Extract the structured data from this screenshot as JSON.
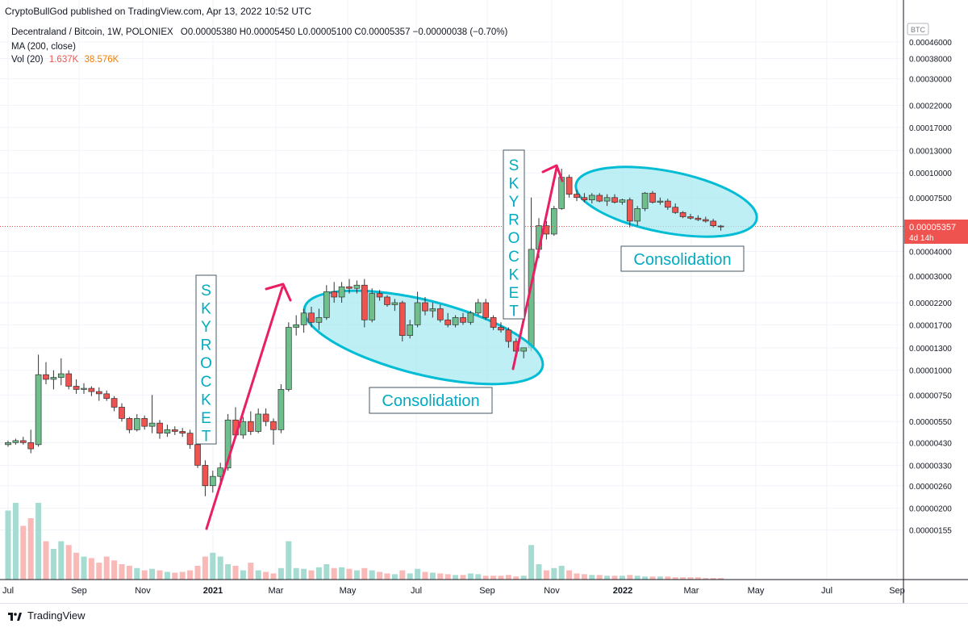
{
  "header": {
    "published": "CryptoBullGod published on TradingView.com, Apr 13, 2022 10:52 UTC"
  },
  "legend": {
    "symbol": "Decentraland / Bitcoin, 1W, POLONIEX",
    "ohlc": "O0.00005380 H0.00005450 L0.00005100 C0.00005357 −0.00000038 (−0.70%)",
    "ma": "MA (200, close)",
    "vol_label": "Vol (20)",
    "vol_value1": "1.637K",
    "vol_value2": "38.576K"
  },
  "colors": {
    "up": "#26a69a",
    "down": "#ef5350",
    "annotation_arrow": "#e91e63",
    "ellipse_stroke": "#00bcd4",
    "ellipse_fill": "#a7e9f0",
    "price_tag": "#ef5350",
    "label_text": "#00acc1"
  },
  "price_axis": {
    "currency_badge": "BTC",
    "ticks": [
      "0.00046000",
      "0.00038000",
      "0.00030000",
      "0.00022000",
      "0.00017000",
      "0.00013000",
      "0.00010000",
      "0.00007500",
      "0.00004000",
      "0.00003000",
      "0.00002200",
      "0.00001700",
      "0.00001300",
      "0.00001000",
      "0.00000750",
      "0.00000550",
      "0.00000430",
      "0.00000330",
      "0.00000260",
      "0.00000200",
      "0.00000155"
    ],
    "current_price": "0.00005357",
    "current_countdown": "4d 14h"
  },
  "time_axis": {
    "labels": [
      "Jul",
      "Sep",
      "Nov",
      "2021",
      "Mar",
      "May",
      "Jul",
      "Sep",
      "Nov",
      "2022",
      "Mar",
      "May",
      "Jul",
      "Sep"
    ]
  },
  "annotations": {
    "skyrocket_1": "SKYROCKET",
    "skyrocket_2": "SKYROCKET",
    "consolidation_1": "Consolidation",
    "consolidation_2": "Consolidation"
  },
  "footer": {
    "brand": "TradingView"
  },
  "chart_data": {
    "type": "candlestick",
    "pair": "MANA/BTC",
    "interval": "1W",
    "scale": "log",
    "candles": [
      [
        4.2e-06,
        4.4e-06,
        4.1e-06,
        4.3e-06
      ],
      [
        4.3e-06,
        4.5e-06,
        4.2e-06,
        4.4e-06
      ],
      [
        4.4e-06,
        4.6e-06,
        4.2e-06,
        4.3e-06
      ],
      [
        4.3e-06,
        5e-06,
        3.8e-06,
        4e-06
      ],
      [
        4.2e-06,
        1.2e-05,
        4.1e-06,
        9.5e-06
      ],
      [
        9.5e-06,
        1.1e-05,
        8.5e-06,
        9e-06
      ],
      [
        9e-06,
        1e-05,
        8e-06,
        9.2e-06
      ],
      [
        9.2e-06,
        1.15e-05,
        8.4e-06,
        9.6e-06
      ],
      [
        9.6e-06,
        1e-05,
        8e-06,
        8.3e-06
      ],
      [
        8.3e-06,
        9e-06,
        7.6e-06,
        8e-06
      ],
      [
        8e-06,
        8.6e-06,
        7.6e-06,
        8.1e-06
      ],
      [
        8.1e-06,
        8.3e-06,
        7.4e-06,
        7.8e-06
      ],
      [
        7.8e-06,
        8.2e-06,
        7e-06,
        7.6e-06
      ],
      [
        7.6e-06,
        7.9e-06,
        7e-06,
        7.2e-06
      ],
      [
        7.2e-06,
        7.4e-06,
        6.2e-06,
        6.5e-06
      ],
      [
        6.5e-06,
        6.8e-06,
        5.5e-06,
        5.7e-06
      ],
      [
        5.7e-06,
        5.8e-06,
        4.8e-06,
        5e-06
      ],
      [
        5e-06,
        6e-06,
        4.9e-06,
        5.7e-06
      ],
      [
        5.7e-06,
        5.9e-06,
        5e-06,
        5.2e-06
      ],
      [
        5.2e-06,
        7.5e-06,
        4.8e-06,
        5.4e-06
      ],
      [
        5.4e-06,
        5.6e-06,
        4.5e-06,
        4.8e-06
      ],
      [
        4.8e-06,
        5.3e-06,
        4.6e-06,
        5e-06
      ],
      [
        5e-06,
        5.2e-06,
        4.7e-06,
        4.9e-06
      ],
      [
        4.9e-06,
        5.1e-06,
        4.6e-06,
        4.8e-06
      ],
      [
        4.8e-06,
        5e-06,
        4e-06,
        4.2e-06
      ],
      [
        4.2e-06,
        4.3e-06,
        3.2e-06,
        3.3e-06
      ],
      [
        3.3e-06,
        3.5e-06,
        2.3e-06,
        2.6e-06
      ],
      [
        2.6e-06,
        3.1e-06,
        2.4e-06,
        2.9e-06
      ],
      [
        2.9e-06,
        3.4e-06,
        2.7e-06,
        3.2e-06
      ],
      [
        3.2e-06,
        6e-06,
        3.1e-06,
        5.6e-06
      ],
      [
        5.6e-06,
        6.5e-06,
        4.5e-06,
        4.7e-06
      ],
      [
        4.7e-06,
        5.8e-06,
        4.5e-06,
        5.5e-06
      ],
      [
        5.5e-06,
        6.2e-06,
        4.7e-06,
        4.9e-06
      ],
      [
        4.9e-06,
        6.4e-06,
        4.8e-06,
        6e-06
      ],
      [
        6e-06,
        6.4e-06,
        5.2e-06,
        5.5e-06
      ],
      [
        5.5e-06,
        5.7e-06,
        4.2e-06,
        5e-06
      ],
      [
        5e-06,
        8.5e-06,
        4.8e-06,
        8e-06
      ],
      [
        8e-06,
        1.75e-05,
        7.8e-06,
        1.65e-05
      ],
      [
        1.65e-05,
        1.9e-05,
        1.5e-05,
        1.7e-05
      ],
      [
        1.7e-05,
        2.05e-05,
        1.55e-05,
        1.95e-05
      ],
      [
        1.95e-05,
        2.1e-05,
        1.65e-05,
        1.75e-05
      ],
      [
        1.75e-05,
        2.05e-05,
        1.6e-05,
        1.85e-05
      ],
      [
        1.85e-05,
        2.7e-05,
        1.8e-05,
        2.5e-05
      ],
      [
        2.5e-05,
        2.8e-05,
        2.2e-05,
        2.35e-05
      ],
      [
        2.35e-05,
        2.8e-05,
        2.2e-05,
        2.65e-05
      ],
      [
        2.65e-05,
        2.9e-05,
        2.45e-05,
        2.6e-05
      ],
      [
        2.6e-05,
        2.85e-05,
        2.45e-05,
        2.7e-05
      ],
      [
        2.7e-05,
        2.9e-05,
        1.65e-05,
        1.8e-05
      ],
      [
        1.8e-05,
        2.6e-05,
        1.75e-05,
        2.45e-05
      ],
      [
        2.45e-05,
        2.55e-05,
        2.25e-05,
        2.35e-05
      ],
      [
        2.35e-05,
        2.4e-05,
        2.1e-05,
        2.15e-05
      ],
      [
        2.15e-05,
        2.3e-05,
        2e-05,
        2.2e-05
      ],
      [
        2.2e-05,
        2.25e-05,
        1.4e-05,
        1.5e-05
      ],
      [
        1.5e-05,
        1.8e-05,
        1.45e-05,
        1.7e-05
      ],
      [
        1.7e-05,
        2.5e-05,
        1.65e-05,
        2.2e-05
      ],
      [
        2.2e-05,
        2.35e-05,
        1.9e-05,
        2e-05
      ],
      [
        2e-05,
        2.2e-05,
        1.85e-05,
        2.05e-05
      ],
      [
        2.05e-05,
        2.15e-05,
        1.75e-05,
        1.8e-05
      ],
      [
        1.8e-05,
        1.95e-05,
        1.65e-05,
        1.7e-05
      ],
      [
        1.7e-05,
        1.9e-05,
        1.65e-05,
        1.85e-05
      ],
      [
        1.85e-05,
        1.95e-05,
        1.7e-05,
        1.75e-05
      ],
      [
        1.75e-05,
        2e-05,
        1.7e-05,
        1.95e-05
      ],
      [
        1.95e-05,
        2.3e-05,
        1.9e-05,
        2.2e-05
      ],
      [
        2.2e-05,
        2.3e-05,
        1.8e-05,
        1.85e-05
      ],
      [
        1.85e-05,
        1.9e-05,
        1.6e-05,
        1.65e-05
      ],
      [
        1.65e-05,
        1.75e-05,
        1.55e-05,
        1.6e-05
      ],
      [
        1.6e-05,
        1.65e-05,
        1.3e-05,
        1.4e-05
      ],
      [
        1.4e-05,
        1.45e-05,
        1.2e-05,
        1.25e-05
      ],
      [
        1.25e-05,
        1.3e-05,
        1.15e-05,
        1.3e-05
      ],
      [
        1.3e-05,
        7.5e-05,
        1.25e-05,
        4.1e-05
      ],
      [
        4.1e-05,
        5.9e-05,
        3.7e-05,
        5.4e-05
      ],
      [
        5.4e-05,
        5.7e-05,
        4.6e-05,
        4.9e-05
      ],
      [
        4.9e-05,
        6.8e-05,
        4.8e-05,
        6.6e-05
      ],
      [
        6.6e-05,
        0.000105,
        6.5e-05,
        9.5e-05
      ],
      [
        9.5e-05,
        9.8e-05,
        7.5e-05,
        7.8e-05
      ],
      [
        7.8e-05,
        8.2e-05,
        7.2e-05,
        7.5e-05
      ],
      [
        7.5e-05,
        7.9e-05,
        7.1e-05,
        7.3e-05
      ],
      [
        7.3e-05,
        7.9e-05,
        7e-05,
        7.7e-05
      ],
      [
        7.7e-05,
        7.9e-05,
        7.1e-05,
        7.2e-05
      ],
      [
        7.2e-05,
        7.8e-05,
        6.8e-05,
        7.5e-05
      ],
      [
        7.5e-05,
        7.8e-05,
        7e-05,
        7.1e-05
      ],
      [
        7.1e-05,
        7.4e-05,
        6.9e-05,
        7.3e-05
      ],
      [
        7.3e-05,
        7.5e-05,
        5.3e-05,
        5.7e-05
      ],
      [
        5.7e-05,
        6.8e-05,
        5.4e-05,
        6.6e-05
      ],
      [
        6.6e-05,
        8e-05,
        6.4e-05,
        7.9e-05
      ],
      [
        7.9e-05,
        8.1e-05,
        7e-05,
        7.1e-05
      ],
      [
        7.1e-05,
        7.5e-05,
        6.9e-05,
        7.2e-05
      ],
      [
        7.2e-05,
        7.4e-05,
        6.5e-05,
        6.7e-05
      ],
      [
        6.7e-05,
        7e-05,
        6.2e-05,
        6.3e-05
      ],
      [
        6.3e-05,
        6.4e-05,
        5.9e-05,
        6e-05
      ],
      [
        6e-05,
        6.2e-05,
        5.8e-05,
        5.9e-05
      ],
      [
        5.9e-05,
        6.1e-05,
        5.7e-05,
        5.8e-05
      ],
      [
        5.8e-05,
        6e-05,
        5.6e-05,
        5.7e-05
      ],
      [
        5.7e-05,
        5.85e-05,
        5.3e-05,
        5.4e-05
      ],
      [
        5.38e-05,
        5.45e-05,
        5.1e-05,
        5.357e-05
      ]
    ],
    "volume_relative": [
      0.9,
      1,
      0.7,
      0.8,
      1,
      0.5,
      0.4,
      0.5,
      0.45,
      0.35,
      0.3,
      0.28,
      0.22,
      0.3,
      0.25,
      0.2,
      0.18,
      0.15,
      0.12,
      0.14,
      0.12,
      0.1,
      0.09,
      0.1,
      0.12,
      0.18,
      0.3,
      0.35,
      0.3,
      0.2,
      0.18,
      0.12,
      0.22,
      0.12,
      0.1,
      0.08,
      0.15,
      0.5,
      0.15,
      0.14,
      0.12,
      0.16,
      0.2,
      0.15,
      0.16,
      0.14,
      0.12,
      0.15,
      0.12,
      0.1,
      0.08,
      0.07,
      0.12,
      0.08,
      0.14,
      0.1,
      0.09,
      0.08,
      0.07,
      0.06,
      0.06,
      0.08,
      0.07,
      0.05,
      0.05,
      0.05,
      0.06,
      0.04,
      0.05,
      0.45,
      0.2,
      0.12,
      0.15,
      0.18,
      0.12,
      0.08,
      0.07,
      0.06,
      0.06,
      0.05,
      0.05,
      0.05,
      0.06,
      0.05,
      0.04,
      0.04,
      0.04,
      0.04,
      0.03,
      0.03,
      0.03,
      0.03,
      0.02,
      0.02,
      0.02
    ],
    "moving_average": {
      "name": "MA (200, close)"
    }
  }
}
